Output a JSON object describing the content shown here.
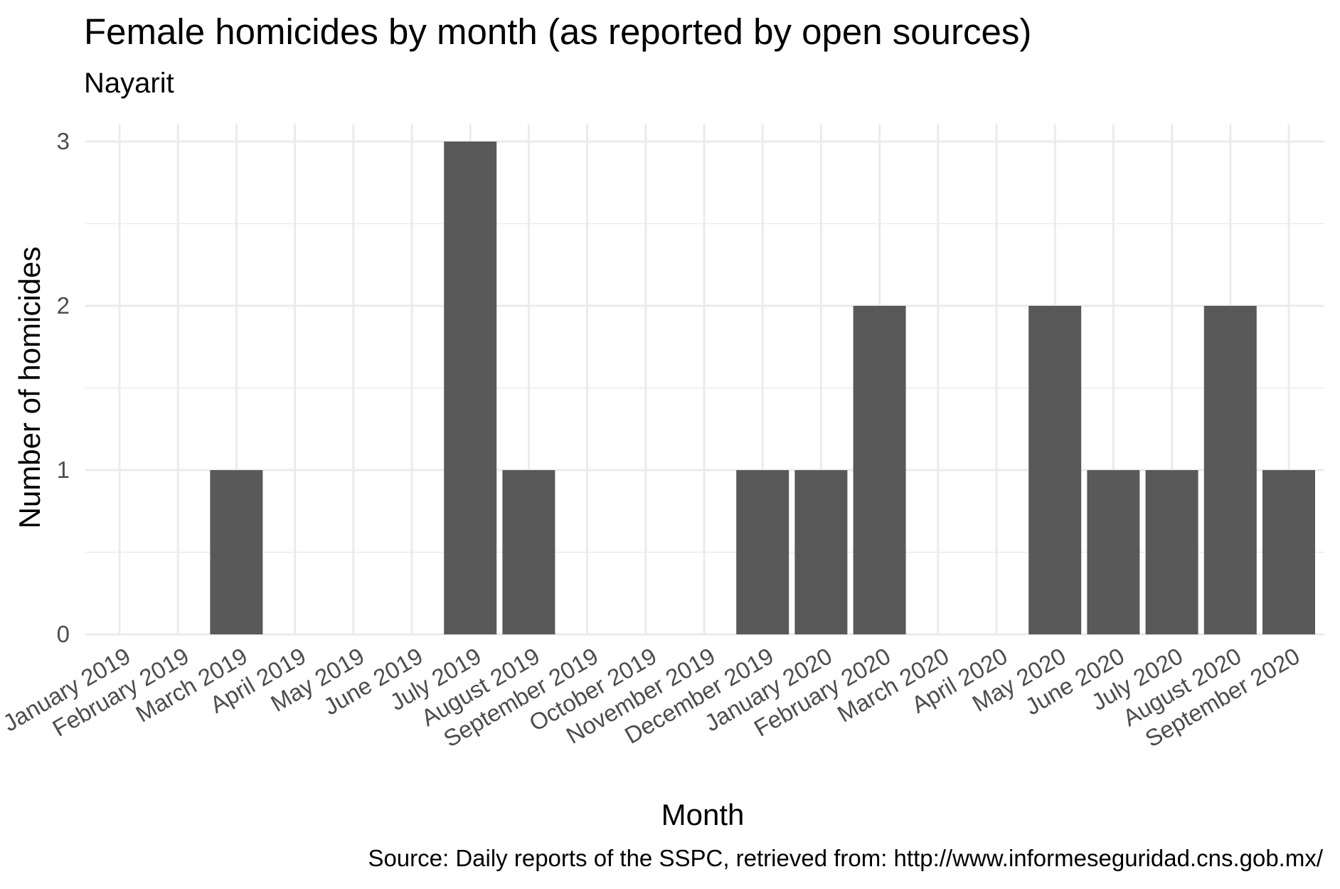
{
  "chart_data": {
    "type": "bar",
    "title": "Female homicides by month (as reported by open sources)",
    "subtitle": "Nayarit",
    "xlabel": "Month",
    "ylabel": "Number of homicides",
    "caption": "Source: Daily reports of the SSPC, retrieved from: http://www.informeseguridad.cns.gob.mx/",
    "categories": [
      "January 2019",
      "February 2019",
      "March 2019",
      "April 2019",
      "May 2019",
      "June 2019",
      "July 2019",
      "August 2019",
      "September 2019",
      "October 2019",
      "November 2019",
      "December 2019",
      "January 2020",
      "February 2020",
      "March 2020",
      "April 2020",
      "May 2020",
      "June 2020",
      "July 2020",
      "August 2020",
      "September 2020"
    ],
    "values": [
      0,
      0,
      1,
      0,
      0,
      0,
      3,
      1,
      0,
      0,
      0,
      1,
      1,
      2,
      0,
      0,
      2,
      1,
      1,
      2,
      1
    ],
    "ylim": [
      0,
      3
    ],
    "yticks": [
      0,
      1,
      2,
      3
    ],
    "grid": true,
    "bar_color": "#595959",
    "grid_color": "#ebebeb",
    "background": "#ffffff"
  }
}
